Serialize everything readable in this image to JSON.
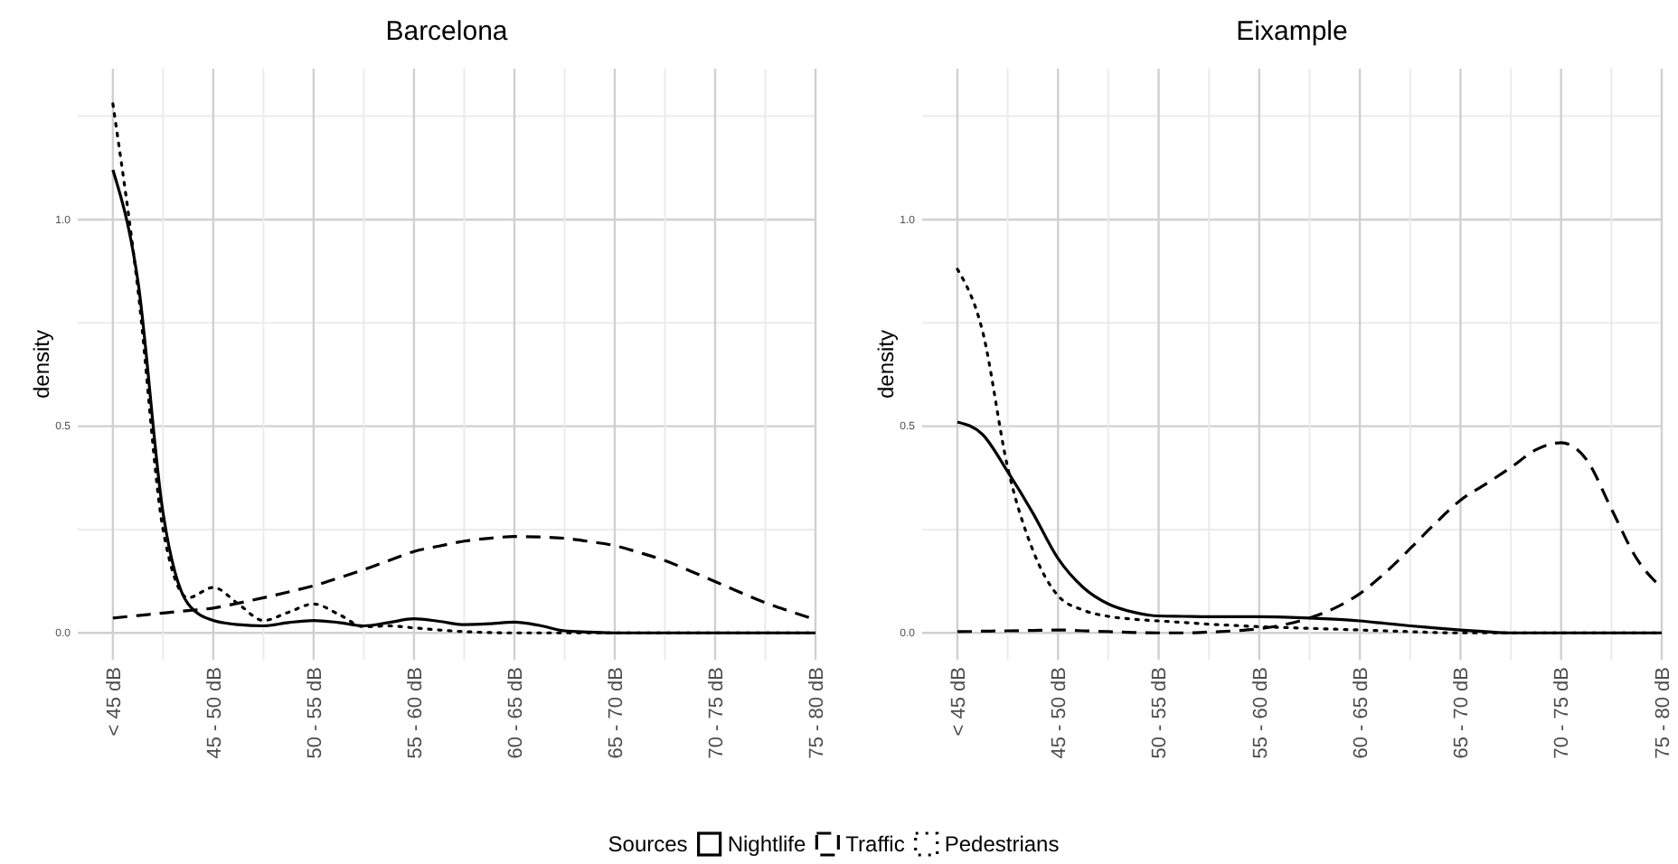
{
  "chart_data": [
    {
      "type": "line",
      "title": "Barcelona",
      "ylabel": "density",
      "ylim": [
        -0.065,
        1.365
      ],
      "categories": [
        "< 45 dB",
        null,
        null,
        null,
        "45 - 50 dB",
        null,
        null,
        null,
        "50 - 55 dB",
        null,
        null,
        null,
        "55 - 60 dB",
        null,
        null,
        null,
        "60 - 65 dB",
        null,
        null,
        null,
        "65 - 70 dB",
        null,
        null,
        null,
        "70 - 75 dB",
        null,
        null,
        null,
        "75 - 80 dB"
      ],
      "yticks": [
        {
          "value": 0,
          "label": "0.0"
        },
        {
          "value": 0.25,
          "label": null
        },
        {
          "value": 0.5,
          "label": "0.5"
        },
        {
          "value": 0.75,
          "label": null
        },
        {
          "value": 1,
          "label": "1.0"
        },
        {
          "value": 1.25,
          "label": null
        }
      ],
      "grid": true,
      "series": [
        {
          "color": "#000000",
          "line_style": "solid",
          "values": [
            1.12,
            0.85,
            0.29,
            0.07,
            0.03,
            0.02,
            0.017,
            0.025,
            0.03,
            0.025,
            0.017,
            0.025,
            0.034,
            0.028,
            0.02,
            0.022,
            0.026,
            0.018,
            0.005,
            0.002,
            0,
            0,
            0,
            0,
            0,
            0,
            0,
            0,
            0
          ]
        },
        {
          "color": "#000000",
          "line_style": "dashed",
          "values": [
            0.036,
            0.042,
            0.048,
            0.054,
            0.06,
            0.072,
            0.085,
            0.099,
            0.114,
            0.133,
            0.153,
            0.175,
            0.197,
            0.21,
            0.222,
            0.229,
            0.233,
            0.232,
            0.229,
            0.221,
            0.211,
            0.194,
            0.175,
            0.15,
            0.124,
            0.098,
            0.073,
            0.052,
            0.032
          ]
        },
        {
          "color": "#000000",
          "line_style": "dotted",
          "values": [
            1.28,
            0.83,
            0.25,
            0.085,
            0.11,
            0.07,
            0.03,
            0.05,
            0.07,
            0.045,
            0.015,
            0.017,
            0.012,
            0.007,
            0.003,
            0.001,
            0,
            0,
            0,
            0,
            0,
            0,
            0,
            0,
            0,
            0,
            0,
            0,
            0
          ]
        }
      ]
    },
    {
      "type": "line",
      "title": "Eixample",
      "ylabel": "density",
      "ylim": [
        -0.065,
        1.365
      ],
      "categories": [
        "< 45 dB",
        null,
        null,
        null,
        "45 - 50 dB",
        null,
        null,
        null,
        "50 - 55 dB",
        null,
        null,
        null,
        "55 - 60 dB",
        null,
        null,
        null,
        "60 - 65 dB",
        null,
        null,
        null,
        "65 - 70 dB",
        null,
        null,
        null,
        "70 - 75 dB",
        null,
        null,
        null,
        "75 - 80 dB"
      ],
      "yticks": [
        {
          "value": 0,
          "label": "0.0"
        },
        {
          "value": 0.25,
          "label": null
        },
        {
          "value": 0.5,
          "label": "0.5"
        },
        {
          "value": 0.75,
          "label": null
        },
        {
          "value": 1,
          "label": "1.0"
        },
        {
          "value": 1.25,
          "label": null
        }
      ],
      "grid": true,
      "legend": "bottom",
      "legend_title": "Sources",
      "series": [
        {
          "name": "Nightlife",
          "color": "#000000",
          "line_style": "solid",
          "values": [
            0.51,
            0.48,
            0.39,
            0.29,
            0.18,
            0.11,
            0.07,
            0.05,
            0.041,
            0.04,
            0.039,
            0.039,
            0.039,
            0.038,
            0.036,
            0.033,
            0.029,
            0.023,
            0.017,
            0.012,
            0.007,
            0.003,
            0,
            0,
            0,
            0,
            0,
            0,
            0
          ]
        },
        {
          "name": "Traffic",
          "color": "#000000",
          "line_style": "dashed",
          "values": [
            0.003,
            0.004,
            0.005,
            0.006,
            0.007,
            0.005,
            0.003,
            0.001,
            0,
            0,
            0.002,
            0.005,
            0.01,
            0.02,
            0.036,
            0.06,
            0.095,
            0.145,
            0.204,
            0.265,
            0.321,
            0.36,
            0.4,
            0.443,
            0.46,
            0.42,
            0.3,
            0.18,
            0.109
          ]
        },
        {
          "name": "Pedestrians",
          "color": "#000000",
          "line_style": "dotted",
          "values": [
            0.88,
            0.73,
            0.4,
            0.2,
            0.09,
            0.055,
            0.04,
            0.033,
            0.029,
            0.025,
            0.021,
            0.018,
            0.015,
            0.013,
            0.011,
            0.009,
            0.007,
            0.005,
            0.003,
            0.001,
            0,
            0,
            0,
            0,
            0,
            0,
            0,
            0,
            0
          ]
        }
      ]
    }
  ]
}
